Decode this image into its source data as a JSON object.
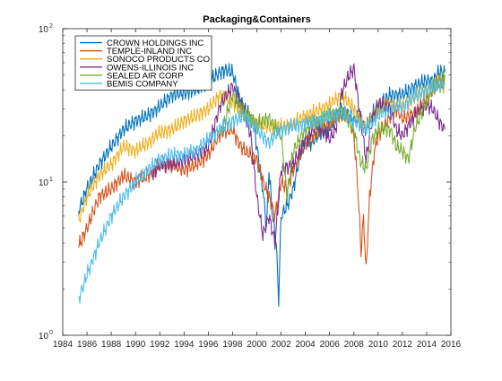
{
  "chart_data": {
    "type": "line",
    "title": "Packaging&Containers",
    "xlabel": "",
    "ylabel": "",
    "x_scale": "linear",
    "y_scale": "log",
    "xlim": [
      1984,
      2016
    ],
    "ylim": [
      1,
      100
    ],
    "x_ticks": [
      1984,
      1986,
      1988,
      1990,
      1992,
      1994,
      1996,
      1998,
      2000,
      2002,
      2004,
      2006,
      2008,
      2010,
      2012,
      2014,
      2016
    ],
    "y_ticks": [
      {
        "value": 1,
        "base": "10",
        "exp": "0"
      },
      {
        "value": 10,
        "base": "10",
        "exp": "1"
      },
      {
        "value": 100,
        "base": "10",
        "exp": "2"
      }
    ],
    "grid": false,
    "legend": {
      "position": "top-left"
    },
    "series": [
      {
        "name": "CROWN HOLDINGS INC",
        "color": "#0072bd",
        "points": [
          [
            1985.3,
            6.5
          ],
          [
            1986,
            9
          ],
          [
            1987,
            13
          ],
          [
            1988,
            17
          ],
          [
            1989,
            22
          ],
          [
            1990,
            25
          ],
          [
            1991,
            27
          ],
          [
            1992,
            31
          ],
          [
            1993,
            37
          ],
          [
            1994,
            38
          ],
          [
            1995,
            40
          ],
          [
            1996,
            45
          ],
          [
            1997,
            52
          ],
          [
            1997.5,
            54
          ],
          [
            1998,
            52
          ],
          [
            1998.5,
            37
          ],
          [
            1999,
            30
          ],
          [
            1999.7,
            25
          ],
          [
            2000,
            17
          ],
          [
            2000.5,
            9
          ],
          [
            2000.8,
            5
          ],
          [
            2001,
            12
          ],
          [
            2001.3,
            6
          ],
          [
            2001.6,
            4
          ],
          [
            2001.8,
            1.7
          ],
          [
            2002,
            6
          ],
          [
            2002.5,
            7
          ],
          [
            2003,
            9
          ],
          [
            2003.5,
            14
          ],
          [
            2004,
            19
          ],
          [
            2004.5,
            18
          ],
          [
            2005,
            20
          ],
          [
            2006,
            23
          ],
          [
            2007,
            30
          ],
          [
            2007.5,
            28
          ],
          [
            2008,
            25
          ],
          [
            2008.5,
            27
          ],
          [
            2009,
            22
          ],
          [
            2009.5,
            28
          ],
          [
            2010,
            31
          ],
          [
            2011,
            37
          ],
          [
            2012,
            37
          ],
          [
            2013,
            42
          ],
          [
            2014,
            46
          ],
          [
            2014.5,
            45
          ],
          [
            2015,
            52
          ],
          [
            2015.5,
            52
          ]
        ]
      },
      {
        "name": "TEMPLE-INLAND INC",
        "color": "#d95319",
        "points": [
          [
            1985.3,
            3.8
          ],
          [
            1986,
            5
          ],
          [
            1987,
            8
          ],
          [
            1988,
            9
          ],
          [
            1989,
            11
          ],
          [
            1990,
            10
          ],
          [
            1991,
            11
          ],
          [
            1992,
            13
          ],
          [
            1993,
            13
          ],
          [
            1994,
            12
          ],
          [
            1995,
            13
          ],
          [
            1996,
            15
          ],
          [
            1997,
            21
          ],
          [
            1998,
            22
          ],
          [
            1998.5,
            18
          ],
          [
            1999,
            16
          ],
          [
            2000,
            14
          ],
          [
            2000.5,
            10
          ],
          [
            2001,
            8
          ],
          [
            2001.5,
            6
          ],
          [
            2002,
            10
          ],
          [
            2002.5,
            9
          ],
          [
            2003,
            12
          ],
          [
            2004,
            18
          ],
          [
            2005,
            21
          ],
          [
            2006,
            24
          ],
          [
            2007,
            28
          ],
          [
            2007.5,
            27
          ],
          [
            2008,
            20
          ],
          [
            2008.3,
            10
          ],
          [
            2008.6,
            3.5
          ],
          [
            2008.8,
            6
          ],
          [
            2009,
            2.6
          ],
          [
            2009.3,
            8
          ],
          [
            2009.7,
            16
          ],
          [
            2010,
            20
          ],
          [
            2011,
            27
          ],
          [
            2011.5,
            30
          ],
          [
            2012,
            26
          ],
          [
            2013,
            28
          ],
          [
            2014,
            35
          ],
          [
            2015,
            45
          ],
          [
            2015.5,
            43
          ]
        ]
      },
      {
        "name": "SONOCO PRODUCTS CO",
        "color": "#edb120",
        "points": [
          [
            1985.3,
            5.5
          ],
          [
            1986,
            8
          ],
          [
            1987,
            11
          ],
          [
            1988,
            13
          ],
          [
            1989,
            17
          ],
          [
            1990,
            16
          ],
          [
            1991,
            18
          ],
          [
            1992,
            21
          ],
          [
            1993,
            22
          ],
          [
            1994,
            25
          ],
          [
            1995,
            27
          ],
          [
            1996,
            30
          ],
          [
            1997,
            37
          ],
          [
            1998,
            33
          ],
          [
            1999,
            28
          ],
          [
            2000,
            24
          ],
          [
            2001,
            23
          ],
          [
            2002,
            23
          ],
          [
            2003,
            24
          ],
          [
            2004,
            27
          ],
          [
            2005,
            29
          ],
          [
            2006,
            32
          ],
          [
            2007,
            37
          ],
          [
            2008,
            30
          ],
          [
            2009,
            22
          ],
          [
            2009.5,
            27
          ],
          [
            2010,
            30
          ],
          [
            2011,
            32
          ],
          [
            2012,
            31
          ],
          [
            2013,
            36
          ],
          [
            2014,
            40
          ],
          [
            2015,
            44
          ],
          [
            2015.5,
            42
          ]
        ]
      },
      {
        "name": "OWENS-ILLINOIS INC",
        "color": "#7e2f8e",
        "points": [
          [
            1991.3,
            11
          ],
          [
            1992,
            13
          ],
          [
            1993,
            13
          ],
          [
            1994,
            14
          ],
          [
            1995,
            15
          ],
          [
            1996,
            17
          ],
          [
            1997,
            32
          ],
          [
            1998,
            42
          ],
          [
            1999,
            28
          ],
          [
            1999.5,
            20
          ],
          [
            2000,
            8
          ],
          [
            2000.5,
            4.5
          ],
          [
            2001,
            6
          ],
          [
            2001.5,
            4
          ],
          [
            2002,
            12
          ],
          [
            2003,
            13
          ],
          [
            2004,
            19
          ],
          [
            2005,
            24
          ],
          [
            2006,
            19
          ],
          [
            2006.5,
            22
          ],
          [
            2007,
            38
          ],
          [
            2007.5,
            48
          ],
          [
            2008,
            55
          ],
          [
            2008.5,
            28
          ],
          [
            2009,
            14
          ],
          [
            2009.5,
            25
          ],
          [
            2010,
            33
          ],
          [
            2011,
            30
          ],
          [
            2011.5,
            22
          ],
          [
            2012,
            20
          ],
          [
            2013,
            27
          ],
          [
            2014,
            32
          ],
          [
            2014.5,
            30
          ],
          [
            2015,
            25
          ],
          [
            2015.5,
            22
          ]
        ]
      },
      {
        "name": "SEALED AIR CORP",
        "color": "#77ac30",
        "points": [
          [
            1997,
            20
          ],
          [
            1998,
            37
          ],
          [
            1999,
            28
          ],
          [
            2000,
            24
          ],
          [
            2001,
            26
          ],
          [
            2002,
            20
          ],
          [
            2002.5,
            8
          ],
          [
            2003,
            16
          ],
          [
            2004,
            22
          ],
          [
            2005,
            25
          ],
          [
            2006,
            27
          ],
          [
            2007,
            29
          ],
          [
            2008,
            22
          ],
          [
            2008.5,
            14
          ],
          [
            2009,
            12
          ],
          [
            2009.5,
            19
          ],
          [
            2010,
            22
          ],
          [
            2011,
            22
          ],
          [
            2011.5,
            17
          ],
          [
            2012,
            16
          ],
          [
            2012.5,
            14
          ],
          [
            2013,
            22
          ],
          [
            2014,
            34
          ],
          [
            2015,
            46
          ],
          [
            2015.5,
            50
          ]
        ]
      },
      {
        "name": "BEMIS COMPANY",
        "color": "#4dbeee",
        "points": [
          [
            1985.3,
            1.7
          ],
          [
            1986,
            2.5
          ],
          [
            1987,
            4
          ],
          [
            1988,
            6
          ],
          [
            1989,
            8
          ],
          [
            1990,
            10
          ],
          [
            1991,
            12
          ],
          [
            1992,
            14
          ],
          [
            1993,
            15
          ],
          [
            1994,
            15
          ],
          [
            1995,
            16
          ],
          [
            1996,
            19
          ],
          [
            1997,
            22
          ],
          [
            1998,
            25
          ],
          [
            1999,
            27
          ],
          [
            2000,
            22
          ],
          [
            2001,
            18
          ],
          [
            2001.5,
            20
          ],
          [
            2002,
            22
          ],
          [
            2003,
            23
          ],
          [
            2004,
            24
          ],
          [
            2005,
            25
          ],
          [
            2006,
            27
          ],
          [
            2007,
            28
          ],
          [
            2008,
            25
          ],
          [
            2009,
            22
          ],
          [
            2010,
            27
          ],
          [
            2011,
            30
          ],
          [
            2012,
            31
          ],
          [
            2013,
            36
          ],
          [
            2014,
            40
          ],
          [
            2015,
            43
          ],
          [
            2015.5,
            44
          ]
        ]
      }
    ]
  }
}
